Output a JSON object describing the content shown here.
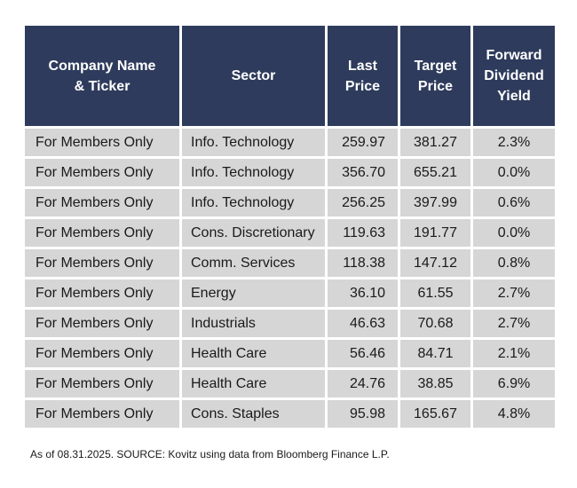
{
  "table": {
    "headers": [
      [
        "Company Name",
        "& Ticker"
      ],
      [
        "Sector"
      ],
      [
        "Last",
        "Price"
      ],
      [
        "Target",
        "Price"
      ],
      [
        "Forward",
        "Dividend",
        "Yield"
      ]
    ],
    "rows": [
      [
        "For Members Only",
        "Info. Technology",
        "259.97",
        "381.27",
        "2.3%"
      ],
      [
        "For Members Only",
        "Info. Technology",
        "356.70",
        "655.21",
        "0.0%"
      ],
      [
        "For Members Only",
        "Info. Technology",
        "256.25",
        "397.99",
        "0.6%"
      ],
      [
        "For Members Only",
        "Cons. Discretionary",
        "119.63",
        "191.77",
        "0.0%"
      ],
      [
        "For Members Only",
        "Comm. Services",
        "118.38",
        "147.12",
        "0.8%"
      ],
      [
        "For Members Only",
        "Energy",
        "36.10",
        "61.55",
        "2.7%"
      ],
      [
        "For Members Only",
        "Industrials",
        "46.63",
        "70.68",
        "2.7%"
      ],
      [
        "For Members Only",
        "Health Care",
        "56.46",
        "84.71",
        "2.1%"
      ],
      [
        "For Members Only",
        "Health Care",
        "24.76",
        "38.85",
        "6.9%"
      ],
      [
        "For Members Only",
        "Cons. Staples",
        "95.98",
        "165.67",
        "4.8%"
      ]
    ]
  },
  "footnote": "As of 08.31.2025. SOURCE: Kovitz using data from Bloomberg Finance L.P.",
  "colors": {
    "header_bg": "#2e3b5c",
    "header_text": "#ffffff",
    "cell_bg": "#d6d6d6",
    "cell_text": "#1a1a1a"
  }
}
